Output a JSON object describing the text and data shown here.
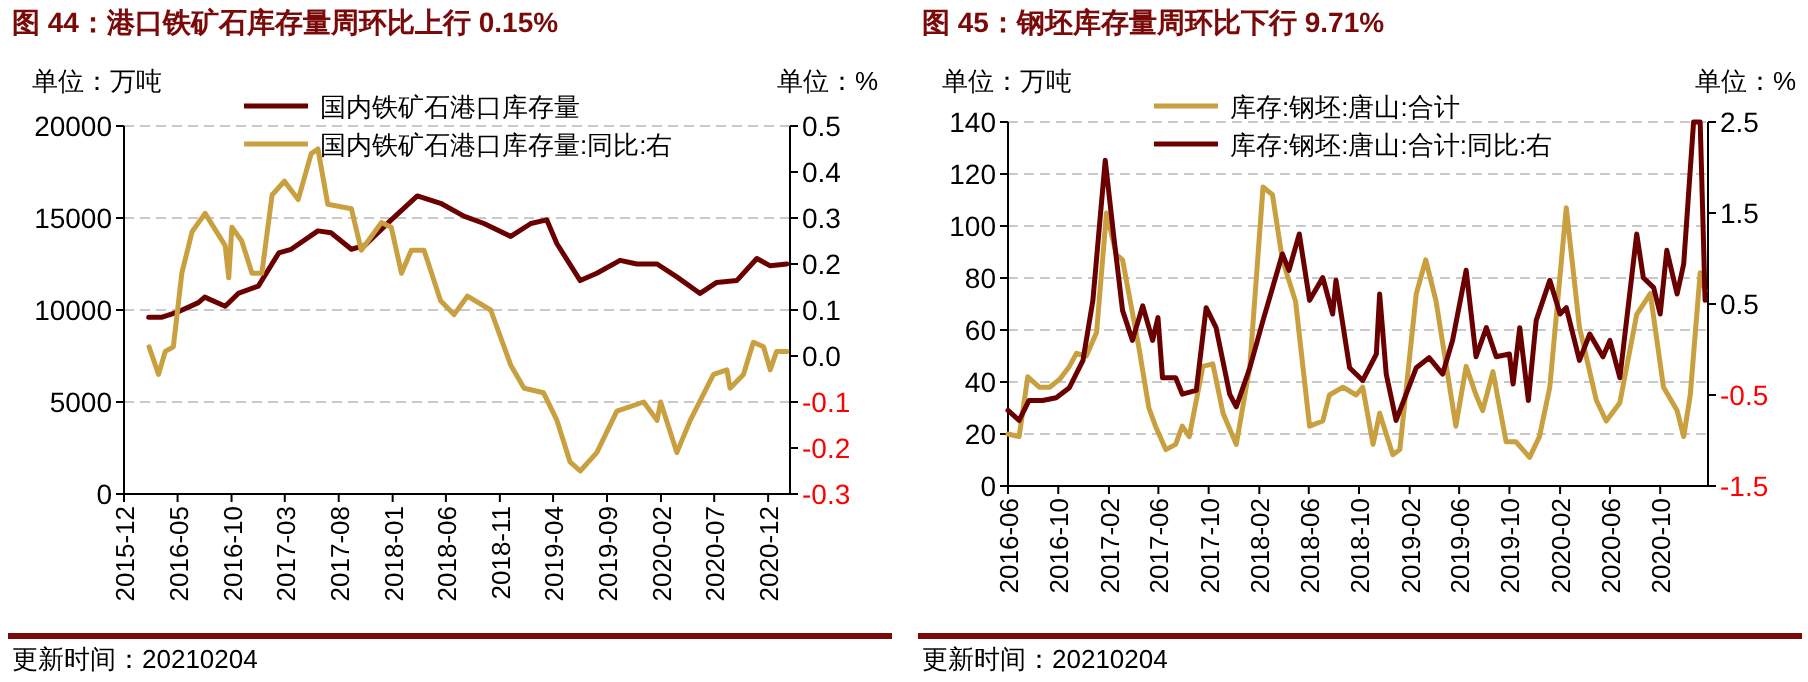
{
  "chart_data": [
    {
      "type": "line",
      "title": "图 44：港口铁矿石库存量周环比上行 0.15%",
      "ylabel": "单位：万吨",
      "y2label": "单位：%",
      "legend": "top",
      "grid": "y",
      "xlim": [
        "2015-12-01",
        "2021-02-01"
      ],
      "xticks": [
        "2015-12",
        "2016-05",
        "2016-10",
        "2017-03",
        "2017-08",
        "2018-01",
        "2018-06",
        "2018-11",
        "2019-04",
        "2019-09",
        "2020-02",
        "2020-07",
        "2020-12"
      ],
      "ylim": [
        0,
        20000
      ],
      "yticks": [
        0,
        5000,
        10000,
        15000,
        20000
      ],
      "y2lim": [
        -0.3,
        0.5
      ],
      "y2ticks": [
        {
          "value": -0.3,
          "label": "-0.3"
        },
        {
          "value": -0.2,
          "label": "-0.2"
        },
        {
          "value": -0.1,
          "label": "-0.1"
        },
        {
          "value": 0,
          "label": "0.0"
        },
        {
          "value": 0.1,
          "label": "0.1"
        },
        {
          "value": 0.2,
          "label": "0.2"
        },
        {
          "value": 0.3,
          "label": "0.3"
        },
        {
          "value": 0.4,
          "label": "0.4"
        },
        {
          "value": 0.5,
          "label": "0.5"
        }
      ],
      "series": [
        {
          "name": "国内铁矿石港口库存量",
          "color": "#6b0000",
          "x": [
            "2016-02-09",
            "2016-03-16",
            "2016-05-03",
            "2016-06-29",
            "2016-07-17",
            "2016-09-13",
            "2016-10-20",
            "2016-12-16",
            "2017-02-12",
            "2017-03-19",
            "2017-06-03",
            "2017-07-10",
            "2017-09-06",
            "2017-10-13",
            "2017-12-28",
            "2018-03-12",
            "2018-05-17",
            "2018-07-22",
            "2018-09-17",
            "2018-12-02",
            "2019-01-28",
            "2019-03-14",
            "2019-04-12",
            "2019-06-17",
            "2019-08-03",
            "2019-10-08",
            "2019-11-25",
            "2020-01-21",
            "2020-03-17",
            "2020-05-22",
            "2020-07-08",
            "2020-09-03",
            "2020-10-30",
            "2020-12-07",
            "2021-01-23"
          ],
          "values": [
            9600,
            9600,
            9900,
            10400,
            10700,
            10200,
            10900,
            11300,
            13100,
            13300,
            14300,
            14200,
            13300,
            13500,
            14900,
            16200,
            15800,
            15100,
            14700,
            14000,
            14700,
            14900,
            13600,
            11600,
            12000,
            12700,
            12500,
            12500,
            11800,
            10900,
            11500,
            11600,
            12800,
            12400,
            12500
          ]
        },
        {
          "name": "国内铁矿石港口库存量:同比:右",
          "color": "#c9a040",
          "axis": "y2",
          "x": [
            "2016-02-10",
            "2016-03-08",
            "2016-03-27",
            "2016-04-19",
            "2016-05-13",
            "2016-06-11",
            "2016-07-18",
            "2016-09-13",
            "2016-09-23",
            "2016-10-02",
            "2016-10-30",
            "2016-11-28",
            "2016-12-26",
            "2017-01-24",
            "2017-02-28",
            "2017-04-08",
            "2017-05-15",
            "2017-06-03",
            "2017-07-01",
            "2017-09-06",
            "2017-10-04",
            "2017-11-30",
            "2017-12-28",
            "2018-01-26",
            "2018-02-23",
            "2018-03-31",
            "2018-05-17",
            "2018-06-24",
            "2018-08-01",
            "2018-10-06",
            "2018-12-02",
            "2019-01-09",
            "2019-03-05",
            "2019-04-12",
            "2019-05-19",
            "2019-06-17",
            "2019-08-03",
            "2019-09-29",
            "2019-12-14",
            "2020-01-21",
            "2020-01-31",
            "2020-03-17",
            "2020-04-24",
            "2020-06-29",
            "2020-08-06",
            "2020-08-15",
            "2020-09-22",
            "2020-10-20",
            "2020-11-18",
            "2020-12-07",
            "2020-12-25",
            "2021-01-23"
          ],
          "values": [
            0.02,
            -0.04,
            0.01,
            0.02,
            0.18,
            0.27,
            0.31,
            0.24,
            0.17,
            0.28,
            0.25,
            0.18,
            0.18,
            0.35,
            0.38,
            0.34,
            0.44,
            0.45,
            0.33,
            0.32,
            0.23,
            0.29,
            0.28,
            0.18,
            0.23,
            0.23,
            0.12,
            0.09,
            0.13,
            0.1,
            -0.02,
            -0.07,
            -0.08,
            -0.14,
            -0.23,
            -0.25,
            -0.21,
            -0.12,
            -0.1,
            -0.14,
            -0.1,
            -0.21,
            -0.14,
            -0.04,
            -0.03,
            -0.07,
            -0.04,
            0.03,
            0.02,
            -0.03,
            0.01,
            0.01
          ]
        }
      ],
      "annotations": [
        "更新时间：20210204"
      ]
    },
    {
      "type": "line",
      "title": "图 45：钢坯库存量周环比下行 9.71%",
      "ylabel": "单位：万吨",
      "y2label": "单位：%",
      "legend": "top",
      "grid": "y",
      "xlim": [
        "2016-06-01",
        "2021-01-25"
      ],
      "xticks": [
        "2016-06",
        "2016-10",
        "2017-02",
        "2017-06",
        "2017-10",
        "2018-02",
        "2018-06",
        "2018-10",
        "2019-02",
        "2019-06",
        "2019-10",
        "2020-02",
        "2020-06",
        "2020-10"
      ],
      "ylim": [
        0,
        140
      ],
      "yticks": [
        0,
        20,
        40,
        60,
        80,
        100,
        120,
        140
      ],
      "y2lim": [
        -1.5,
        2.5
      ],
      "y2ticks": [
        -1.5,
        -0.5,
        0.5,
        1.5,
        2.5
      ],
      "series": [
        {
          "name": "库存:钢坯:唐山:合计",
          "color": "#c9a040",
          "x": [
            "2016-06-01",
            "2016-06-28",
            "2016-07-19",
            "2016-08-16",
            "2016-09-10",
            "2016-10-04",
            "2016-10-28",
            "2016-11-14",
            "2016-12-08",
            "2017-01-02",
            "2017-01-26",
            "2017-02-19",
            "2017-03-06",
            "2017-04-15",
            "2017-05-09",
            "2017-05-25",
            "2017-06-19",
            "2017-07-13",
            "2017-07-29",
            "2017-08-15",
            "2017-09-17",
            "2017-10-11",
            "2017-11-05",
            "2017-12-07",
            "2018-01-09",
            "2018-02-10",
            "2018-03-05",
            "2018-03-29",
            "2018-04-30",
            "2018-06-03",
            "2018-07-05",
            "2018-07-21",
            "2018-08-23",
            "2018-09-24",
            "2018-10-10",
            "2018-11-04",
            "2018-11-20",
            "2018-12-22",
            "2019-01-08",
            "2019-02-17",
            "2019-03-12",
            "2019-04-06",
            "2019-05-24",
            "2019-06-18",
            "2019-07-12",
            "2019-07-28",
            "2019-08-22",
            "2019-09-23",
            "2019-10-17",
            "2019-11-19",
            "2019-12-13",
            "2020-01-07",
            "2020-02-16",
            "2020-03-19",
            "2020-04-29",
            "2020-05-23",
            "2020-06-25",
            "2020-08-05",
            "2020-09-07",
            "2020-10-09",
            "2020-11-11",
            "2020-11-27",
            "2020-12-13",
            "2021-01-06",
            "2021-01-18"
          ],
          "values": [
            20,
            19,
            42,
            38,
            38,
            41,
            46,
            51,
            50,
            59,
            105,
            89,
            87,
            53,
            30,
            23,
            14,
            16,
            23,
            19,
            46,
            47,
            28,
            16,
            46,
            115,
            112,
            87,
            71,
            23,
            25,
            35,
            38,
            35,
            38,
            16,
            28,
            12,
            14,
            74,
            87,
            71,
            23,
            46,
            35,
            29,
            44,
            17,
            17,
            11,
            19,
            38,
            107,
            61,
            33,
            25,
            32,
            66,
            74,
            38,
            29,
            19,
            35,
            82,
            75
          ]
        },
        {
          "name": "库存:钢坯:唐山:合计:同比:右",
          "color": "#6b0000",
          "axis": "y2",
          "x": [
            "2016-06-01",
            "2016-06-28",
            "2016-07-22",
            "2016-08-24",
            "2016-09-26",
            "2016-10-28",
            "2016-11-30",
            "2016-12-24",
            "2017-01-23",
            "2017-02-12",
            "2017-03-06",
            "2017-03-30",
            "2017-04-24",
            "2017-05-18",
            "2017-05-31",
            "2017-06-11",
            "2017-07-13",
            "2017-07-29",
            "2017-09-01",
            "2017-09-25",
            "2017-10-19",
            "2017-11-21",
            "2017-12-07",
            "2018-01-09",
            "2018-02-10",
            "2018-03-29",
            "2018-04-14",
            "2018-05-09",
            "2018-06-03",
            "2018-07-05",
            "2018-07-29",
            "2018-08-06",
            "2018-09-08",
            "2018-10-10",
            "2018-11-12",
            "2018-11-20",
            "2018-12-06",
            "2018-12-30",
            "2019-02-17",
            "2019-03-20",
            "2019-04-22",
            "2019-05-16",
            "2019-06-18",
            "2019-07-12",
            "2019-08-06",
            "2019-08-30",
            "2019-10-01",
            "2019-10-10",
            "2019-10-26",
            "2019-11-16",
            "2019-12-05",
            "2020-01-07",
            "2020-02-01",
            "2020-02-16",
            "2020-03-19",
            "2020-04-13",
            "2020-05-15",
            "2020-06-01",
            "2020-06-25",
            "2020-08-05",
            "2020-08-21",
            "2020-09-15",
            "2020-10-01",
            "2020-10-17",
            "2020-11-11",
            "2020-11-27",
            "2020-12-21",
            "2021-01-06",
            "2021-01-18"
          ],
          "values": [
            -0.67,
            -0.78,
            -0.56,
            -0.56,
            -0.53,
            -0.42,
            -0.12,
            0.54,
            2.08,
            1.27,
            0.43,
            0.1,
            0.48,
            0.1,
            0.35,
            -0.31,
            -0.31,
            -0.49,
            -0.45,
            0.46,
            0.24,
            -0.49,
            -0.63,
            -0.2,
            0.32,
            1.05,
            0.87,
            1.27,
            0.54,
            0.79,
            0.39,
            0.76,
            -0.2,
            -0.34,
            -0.05,
            0.61,
            -0.27,
            -0.78,
            -0.2,
            -0.09,
            -0.27,
            0.1,
            0.87,
            -0.08,
            0.24,
            -0.08,
            -0.05,
            -0.38,
            0.24,
            -0.56,
            0.32,
            0.76,
            0.39,
            0.46,
            -0.12,
            0.17,
            -0.08,
            0.1,
            -0.31,
            1.27,
            0.79,
            0.68,
            0.39,
            1.09,
            0.61,
            0.94,
            2.5,
            2.5,
            0.54
          ]
        }
      ],
      "annotations": [
        "更新时间：20210204"
      ]
    }
  ]
}
